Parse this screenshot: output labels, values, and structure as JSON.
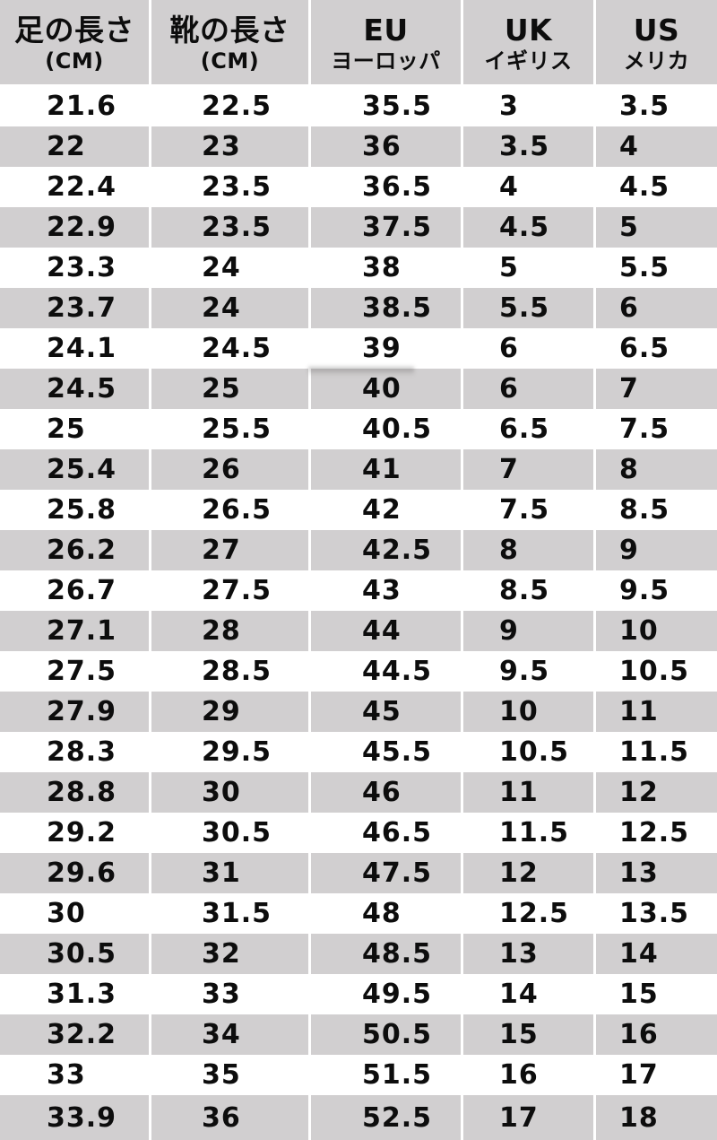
{
  "chart_data": {
    "type": "table",
    "title": "Shoe size conversion table (JP cm / EU / UK / US)",
    "columns": [
      {
        "id": "foot_length",
        "title": "足の長さ",
        "subtitle": "(CM)"
      },
      {
        "id": "shoe_length",
        "title": "靴の長さ",
        "subtitle": "(CM)"
      },
      {
        "id": "eu",
        "title": "EU",
        "subtitle": "ヨーロッパ"
      },
      {
        "id": "uk",
        "title": "UK",
        "subtitle": "イギリス"
      },
      {
        "id": "us",
        "title": "US",
        "subtitle": "メリカ"
      }
    ],
    "rows": [
      [
        "21.6",
        "22.5",
        "35.5",
        "3",
        "3.5"
      ],
      [
        "22",
        "23",
        "36",
        "3.5",
        "4"
      ],
      [
        "22.4",
        "23.5",
        "36.5",
        "4",
        "4.5"
      ],
      [
        "22.9",
        "23.5",
        "37.5",
        "4.5",
        "5"
      ],
      [
        "23.3",
        "24",
        "38",
        "5",
        "5.5"
      ],
      [
        "23.7",
        "24",
        "38.5",
        "5.5",
        "6"
      ],
      [
        "24.1",
        "24.5",
        "39",
        "6",
        "6.5"
      ],
      [
        "24.5",
        "25",
        "40",
        "6",
        "7"
      ],
      [
        "25",
        "25.5",
        "40.5",
        "6.5",
        "7.5"
      ],
      [
        "25.4",
        "26",
        "41",
        "7",
        "8"
      ],
      [
        "25.8",
        "26.5",
        "42",
        "7.5",
        "8.5"
      ],
      [
        "26.2",
        "27",
        "42.5",
        "8",
        "9"
      ],
      [
        "26.7",
        "27.5",
        "43",
        "8.5",
        "9.5"
      ],
      [
        "27.1",
        "28",
        "44",
        "9",
        "10"
      ],
      [
        "27.5",
        "28.5",
        "44.5",
        "9.5",
        "10.5"
      ],
      [
        "27.9",
        "29",
        "45",
        "10",
        "11"
      ],
      [
        "28.3",
        "29.5",
        "45.5",
        "10.5",
        "11.5"
      ],
      [
        "28.8",
        "30",
        "46",
        "11",
        "12"
      ],
      [
        "29.2",
        "30.5",
        "46.5",
        "11.5",
        "12.5"
      ],
      [
        "29.6",
        "31",
        "47.5",
        "12",
        "13"
      ],
      [
        "30",
        "31.5",
        "48",
        "12.5",
        "13.5"
      ],
      [
        "30.5",
        "32",
        "48.5",
        "13",
        "14"
      ],
      [
        "31.3",
        "33",
        "49.5",
        "14",
        "15"
      ],
      [
        "32.2",
        "34",
        "50.5",
        "15",
        "16"
      ],
      [
        "33",
        "35",
        "51.5",
        "16",
        "17"
      ],
      [
        "33.9",
        "36",
        "52.5",
        "17",
        "18"
      ]
    ]
  },
  "colors": {
    "row_shaded": "#d1cfd0",
    "row_plain": "#ffffff",
    "header_bg": "#d1cfd0",
    "text": "#0d0d0d",
    "divider": "#ffffff"
  }
}
